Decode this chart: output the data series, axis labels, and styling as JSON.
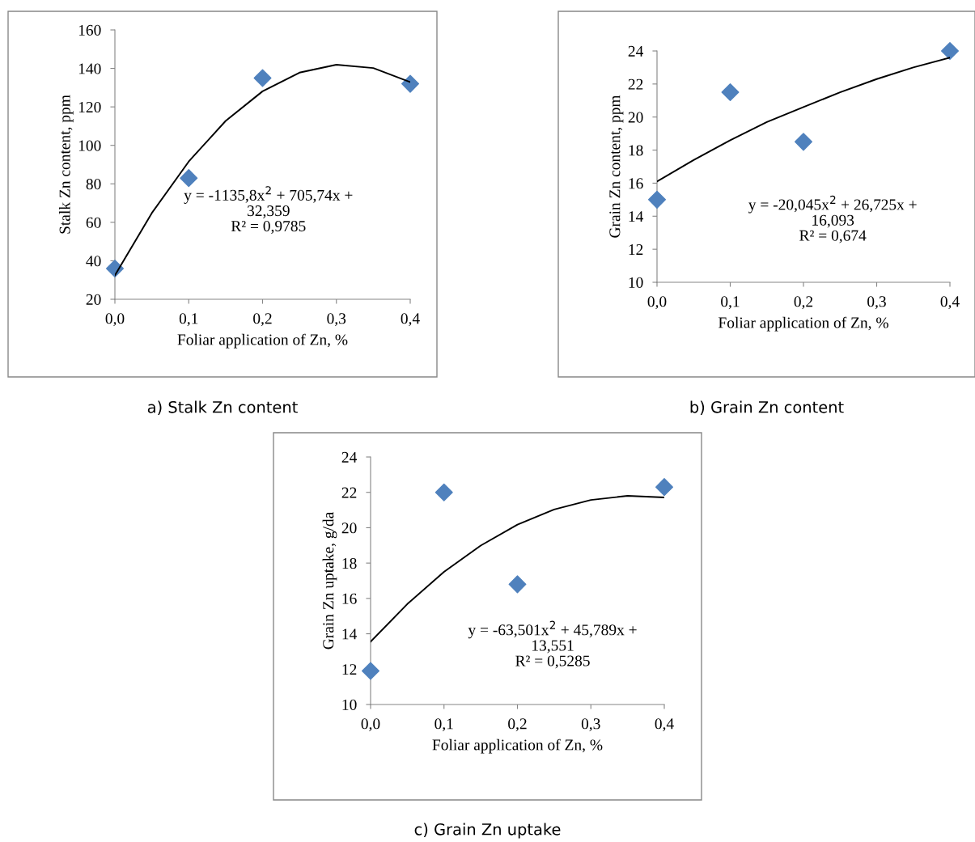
{
  "chart_data": [
    {
      "type": "scatter",
      "xlabel": "Foliar application of Zn, %",
      "ylabel": "Stalk Zn content, ppm",
      "xlim": [
        0,
        0.4
      ],
      "ylim": [
        20,
        160
      ],
      "xticks": [
        {
          "value": 0,
          "label": "0,0"
        },
        {
          "value": 0.1,
          "label": "0,1"
        },
        {
          "value": 0.2,
          "label": "0,2"
        },
        {
          "value": 0.3,
          "label": "0,3"
        },
        {
          "value": 0.4,
          "label": "0,4"
        }
      ],
      "yticks": [
        20,
        40,
        60,
        80,
        100,
        120,
        140,
        160
      ],
      "grid": false,
      "series": [
        {
          "marker": "diamond",
          "color": "#4f81bd",
          "x": [
            0,
            0.1,
            0.2,
            0.4
          ],
          "values": [
            36,
            83,
            135,
            132
          ]
        },
        {
          "type": "line",
          "marker": "none",
          "color": "#000000",
          "x": [
            0,
            0.05,
            0.1,
            0.15,
            0.2,
            0.25,
            0.3,
            0.35,
            0.4
          ],
          "values": [
            32.4,
            64.8,
            91.6,
            112.7,
            128.1,
            137.8,
            141.9,
            140.2,
            132.9
          ]
        }
      ],
      "annotations": [
        "y = -1135,8x$^{2}$ + 705,74x +\n32,359\nR² = 0,9785",
        "a) Stalk Zn content"
      ]
    },
    {
      "type": "scatter",
      "xlabel": "Foliar application of Zn, %",
      "ylabel": "Grain Zn content, ppm",
      "xlim": [
        0,
        0.4
      ],
      "ylim": [
        10,
        24
      ],
      "xticks": [
        {
          "value": 0,
          "label": "0,0"
        },
        {
          "value": 0.1,
          "label": "0,1"
        },
        {
          "value": 0.2,
          "label": "0,2"
        },
        {
          "value": 0.3,
          "label": "0,3"
        },
        {
          "value": 0.4,
          "label": "0,4"
        }
      ],
      "yticks": [
        10,
        12,
        14,
        16,
        18,
        20,
        22,
        24
      ],
      "grid": false,
      "series": [
        {
          "marker": "diamond",
          "color": "#4f81bd",
          "x": [
            0,
            0.1,
            0.2,
            0.4
          ],
          "values": [
            15,
            21.5,
            18.5,
            24
          ]
        },
        {
          "type": "line",
          "marker": "none",
          "color": "#000000",
          "x": [
            0,
            0.05,
            0.1,
            0.15,
            0.2,
            0.25,
            0.3,
            0.35,
            0.4
          ],
          "values": [
            16.1,
            17.4,
            18.6,
            19.7,
            20.6,
            21.5,
            22.3,
            23.0,
            23.6
          ]
        }
      ],
      "annotations": [
        "y = -20,045x$^{2}$ + 26,725x +\n16,093\nR² = 0,674",
        "b) Grain Zn content"
      ]
    },
    {
      "type": "scatter",
      "xlabel": "Foliar application of Zn, %",
      "ylabel": "Grain Zn uptake, g/da",
      "xlim": [
        0,
        0.4
      ],
      "ylim": [
        10,
        24
      ],
      "xticks": [
        {
          "value": 0,
          "label": "0,0"
        },
        {
          "value": 0.1,
          "label": "0,1"
        },
        {
          "value": 0.2,
          "label": "0,2"
        },
        {
          "value": 0.3,
          "label": "0,3"
        },
        {
          "value": 0.4,
          "label": "0,4"
        }
      ],
      "yticks": [
        10,
        12,
        14,
        16,
        18,
        20,
        22,
        24
      ],
      "grid": false,
      "series": [
        {
          "marker": "diamond",
          "color": "#4f81bd",
          "x": [
            0,
            0.1,
            0.2,
            0.4
          ],
          "values": [
            11.9,
            22,
            16.8,
            22.3
          ]
        },
        {
          "type": "line",
          "marker": "none",
          "color": "#000000",
          "x": [
            0,
            0.05,
            0.1,
            0.15,
            0.2,
            0.25,
            0.3,
            0.35,
            0.4
          ],
          "values": [
            13.55,
            15.68,
            17.5,
            18.99,
            20.17,
            21.03,
            21.57,
            21.8,
            21.71
          ]
        }
      ],
      "annotations": [
        "y = -63,501x$^{2}$ + 45,789x +\n13,551\nR² = 0,5285",
        "c) Grain Zn uptake"
      ]
    }
  ]
}
